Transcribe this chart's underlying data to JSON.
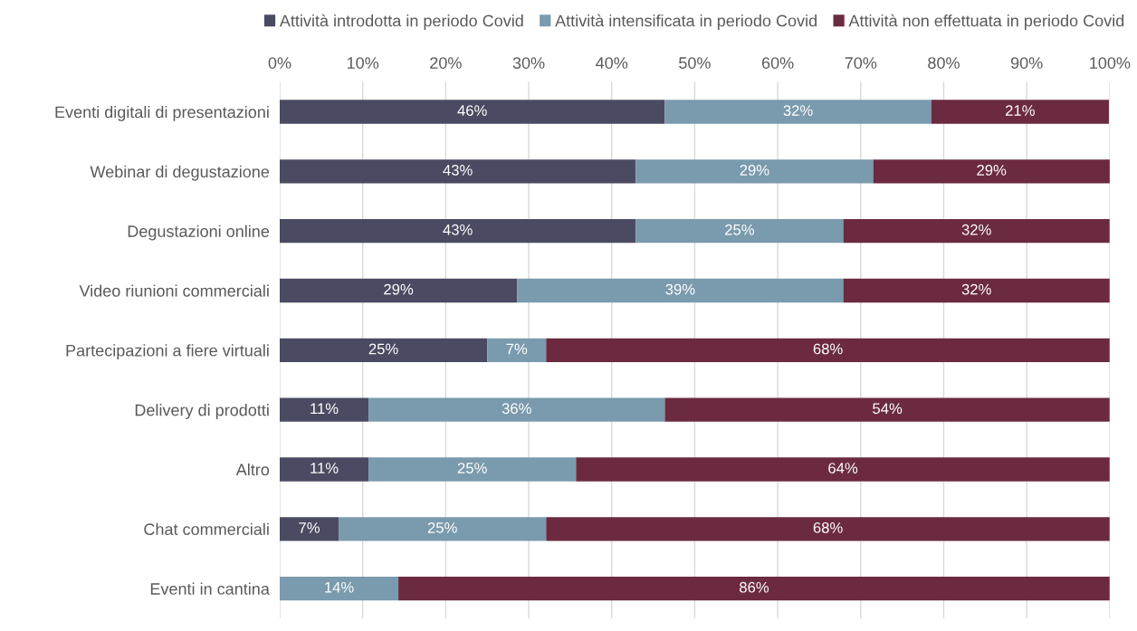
{
  "chart_data": {
    "type": "bar",
    "orientation": "horizontal",
    "stacked": true,
    "categories": [
      "Eventi digitali di presentazioni",
      "Webinar di degustazione",
      "Degustazioni online",
      "Video riunioni commerciali",
      "Partecipazioni a fiere virtuali",
      "Delivery di prodotti",
      "Altro",
      "Chat commerciali",
      "Eventi in cantina"
    ],
    "series": [
      {
        "name": "Attività introdotta in periodo Covid",
        "color": "#4a4b62",
        "values": [
          46.4,
          42.9,
          42.9,
          28.6,
          25.0,
          10.7,
          10.7,
          7.1,
          0
        ],
        "value_labels": [
          "46%",
          "43%",
          "43%",
          "29%",
          "25%",
          "11%",
          "11%",
          "7%",
          null
        ]
      },
      {
        "name": "Attività intensificata in periodo Covid",
        "color": "#7a9aad",
        "values": [
          32.1,
          28.6,
          25.0,
          39.3,
          7.1,
          35.7,
          25.0,
          25.0,
          14.3
        ],
        "value_labels": [
          "32%",
          "29%",
          "25%",
          "39%",
          "7%",
          "36%",
          "25%",
          "25%",
          "14%"
        ]
      },
      {
        "name": "Attività non effettuata in periodo Covid",
        "color": "#6b2a3f",
        "values": [
          21.4,
          28.6,
          32.1,
          32.1,
          67.9,
          53.6,
          64.3,
          67.9,
          85.7
        ],
        "value_labels": [
          "21%",
          "29%",
          "32%",
          "32%",
          "68%",
          "54%",
          "64%",
          "68%",
          "86%"
        ]
      }
    ],
    "xlim": [
      0,
      100
    ],
    "xticks": [
      {
        "value": 0,
        "label": "0%"
      },
      {
        "value": 10,
        "label": "10%"
      },
      {
        "value": 20,
        "label": "20%"
      },
      {
        "value": 30,
        "label": "30%"
      },
      {
        "value": 40,
        "label": "40%"
      },
      {
        "value": 50,
        "label": "50%"
      },
      {
        "value": 60,
        "label": "60%"
      },
      {
        "value": 70,
        "label": "70%"
      },
      {
        "value": 80,
        "label": "80%"
      },
      {
        "value": 90,
        "label": "90%"
      },
      {
        "value": 100,
        "label": "100%"
      }
    ],
    "grid": "x",
    "legend": "top"
  }
}
